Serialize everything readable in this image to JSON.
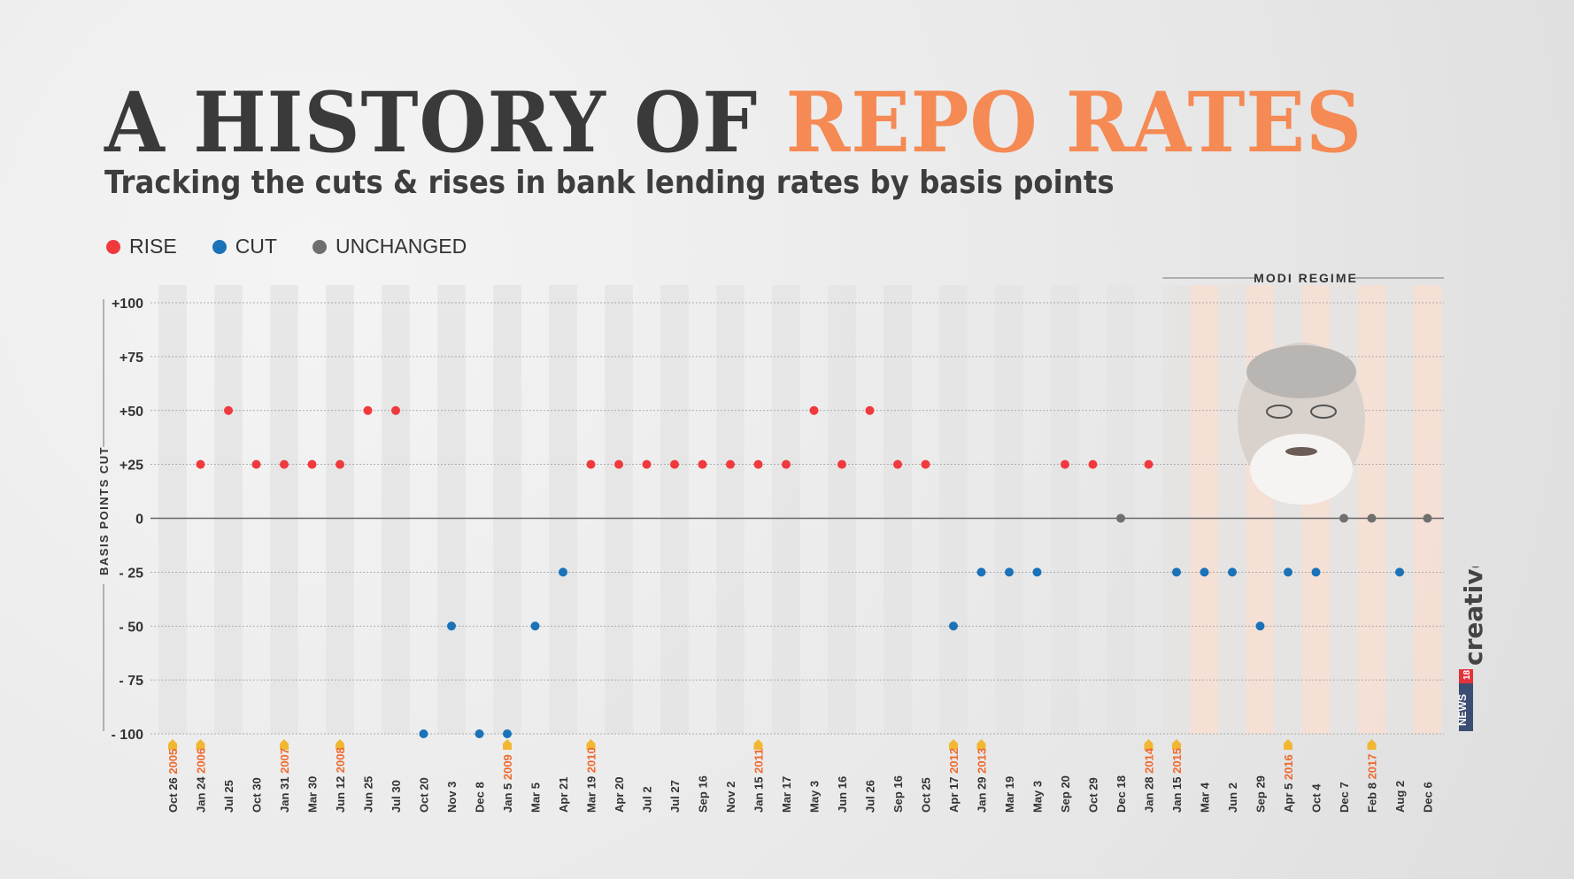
{
  "header": {
    "title_main": "A HISTORY OF ",
    "title_accent": "REPO RATES",
    "subtitle": "Tracking the cuts & rises in bank lending rates by basis points"
  },
  "legend": [
    {
      "label": "RISE",
      "color": "#f0393c"
    },
    {
      "label": "CUT",
      "color": "#1a72b8"
    },
    {
      "label": "UNCHANGED",
      "color": "#6f6f6f"
    }
  ],
  "annotation": {
    "label": "MODI REGIME",
    "start_index": 36
  },
  "logo": {
    "brand": "NEWS18",
    "text": "creative"
  },
  "chart_data": {
    "type": "scatter",
    "title": "A HISTORY OF REPO RATES",
    "subtitle": "Tracking the cuts & rises in bank lending rates by basis points",
    "ylabel": "BASIS POINTS CUT",
    "ylim": [
      -100,
      100
    ],
    "yticks": [
      "+100",
      "+75",
      "+50",
      "+25",
      "0",
      "- 25",
      "- 50",
      "- 75",
      "- 100"
    ],
    "ytick_values": [
      100,
      75,
      50,
      25,
      0,
      -25,
      -50,
      -75,
      -100
    ],
    "grid": true,
    "legend_position": "top-left",
    "points": [
      {
        "date": "Oct 26",
        "year": "2005",
        "value": null
      },
      {
        "date": "Jan 24",
        "year": "2006",
        "value": 25
      },
      {
        "date": "Jul 25",
        "year": "",
        "value": 50
      },
      {
        "date": "Oct 30",
        "year": "",
        "value": 25
      },
      {
        "date": "Jan 31",
        "year": "2007",
        "value": 25
      },
      {
        "date": "Mar 30",
        "year": "",
        "value": 25
      },
      {
        "date": "Jun 12",
        "year": "2008",
        "value": 25
      },
      {
        "date": "Jun 25",
        "year": "",
        "value": 50
      },
      {
        "date": "Jul 30",
        "year": "",
        "value": 50
      },
      {
        "date": "Oct 20",
        "year": "",
        "value": -100
      },
      {
        "date": "Nov 3",
        "year": "",
        "value": -50
      },
      {
        "date": "Dec 8",
        "year": "",
        "value": -100
      },
      {
        "date": "Jan 5",
        "year": "2009",
        "value": -100
      },
      {
        "date": "Mar 5",
        "year": "",
        "value": -50
      },
      {
        "date": "Apr 21",
        "year": "",
        "value": -25
      },
      {
        "date": "Mar 19",
        "year": "2010",
        "value": 25
      },
      {
        "date": "Apr 20",
        "year": "",
        "value": 25
      },
      {
        "date": "Jul 2",
        "year": "",
        "value": 25
      },
      {
        "date": "Jul 27",
        "year": "",
        "value": 25
      },
      {
        "date": "Sep 16",
        "year": "",
        "value": 25
      },
      {
        "date": "Nov 2",
        "year": "",
        "value": 25
      },
      {
        "date": "Jan 15",
        "year": "2011",
        "value": 25
      },
      {
        "date": "Mar 17",
        "year": "",
        "value": 25
      },
      {
        "date": "May 3",
        "year": "",
        "value": 50
      },
      {
        "date": "Jun 16",
        "year": "",
        "value": 25
      },
      {
        "date": "Jul 26",
        "year": "",
        "value": 50
      },
      {
        "date": "Sep 16",
        "year": "",
        "value": 25
      },
      {
        "date": "Oct 25",
        "year": "",
        "value": 25
      },
      {
        "date": "Apr 17",
        "year": "2012",
        "value": -50
      },
      {
        "date": "Jan 29",
        "year": "2013",
        "value": -25
      },
      {
        "date": "Mar 19",
        "year": "",
        "value": -25
      },
      {
        "date": "May 3",
        "year": "",
        "value": -25
      },
      {
        "date": "Sep 20",
        "year": "",
        "value": 25
      },
      {
        "date": "Oct 29",
        "year": "",
        "value": 25
      },
      {
        "date": "Dec 18",
        "year": "",
        "value": 0
      },
      {
        "date": "Jan 28",
        "year": "2014",
        "value": 25
      },
      {
        "date": "Jan 15",
        "year": "2015",
        "value": -25
      },
      {
        "date": "Mar 4",
        "year": "",
        "value": -25
      },
      {
        "date": "Jun 2",
        "year": "",
        "value": -25
      },
      {
        "date": "Sep 29",
        "year": "",
        "value": -50
      },
      {
        "date": "Apr 5",
        "year": "2016",
        "value": -25
      },
      {
        "date": "Oct 4",
        "year": "",
        "value": -25
      },
      {
        "date": "Dec 7",
        "year": "",
        "value": 0
      },
      {
        "date": "Feb 8",
        "year": "2017",
        "value": 0
      },
      {
        "date": "Aug 2",
        "year": "",
        "value": -25
      },
      {
        "date": "Dec 6",
        "year": "",
        "value": 0
      }
    ]
  }
}
